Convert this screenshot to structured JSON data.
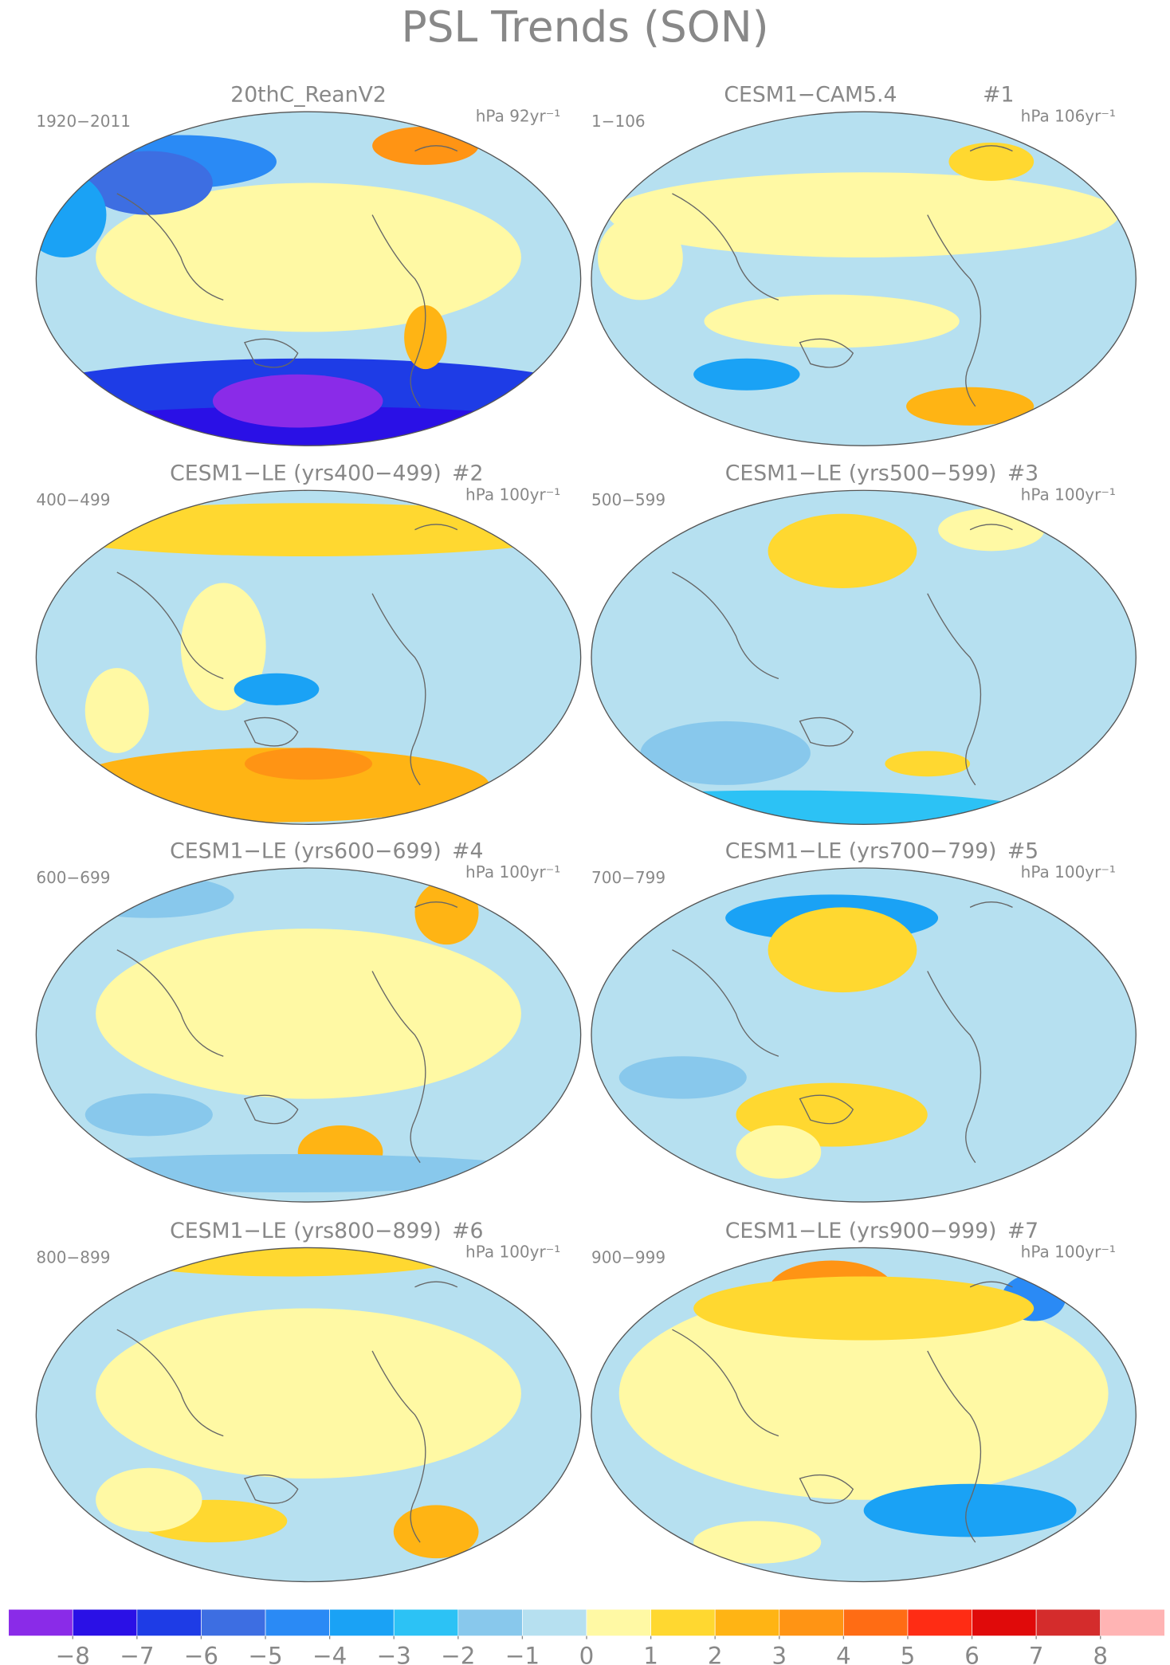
{
  "title": "PSL Trends (SON)",
  "panels": [
    {
      "title": "20thC_ReanV2",
      "period": "1920−2011",
      "units": "hPa 92yr⁻¹"
    },
    {
      "title": "CESM1−CAM5.4",
      "number": "#1",
      "period": "1−106",
      "units": "hPa 106yr⁻¹"
    },
    {
      "title": "CESM1−LE (yrs400−499)",
      "number": "#2",
      "period": "400−499",
      "units": "hPa 100yr⁻¹"
    },
    {
      "title": "CESM1−LE (yrs500−599)",
      "number": "#3",
      "period": "500−599",
      "units": "hPa 100yr⁻¹"
    },
    {
      "title": "CESM1−LE (yrs600−699)",
      "number": "#4",
      "period": "600−699",
      "units": "hPa 100yr⁻¹"
    },
    {
      "title": "CESM1−LE (yrs700−799)",
      "number": "#5",
      "period": "700−799",
      "units": "hPa 100yr⁻¹"
    },
    {
      "title": "CESM1−LE (yrs800−899)",
      "number": "#6",
      "period": "800−899",
      "units": "hPa 100yr⁻¹"
    },
    {
      "title": "CESM1−LE (yrs900−999)",
      "number": "#7",
      "period": "900−999",
      "units": "hPa 100yr⁻¹"
    }
  ],
  "colorbar": {
    "colors": [
      "#8a2be8",
      "#2a10e6",
      "#1e3ce6",
      "#3d6ee2",
      "#2a8af5",
      "#1aa2f5",
      "#2cc2f5",
      "#88c8ec",
      "#b6e0f0",
      "#fff9a4",
      "#ffd830",
      "#ffb414",
      "#ff9414",
      "#ff6c14",
      "#ff2c14",
      "#e00a0a",
      "#d42c2c",
      "#ffb4b4"
    ],
    "ticks": [
      {
        "value": -8,
        "label": "−8"
      },
      {
        "value": -7,
        "label": "−7"
      },
      {
        "value": -6,
        "label": "−6"
      },
      {
        "value": -5,
        "label": "−5"
      },
      {
        "value": -4,
        "label": "−4"
      },
      {
        "value": -3,
        "label": "−3"
      },
      {
        "value": -2,
        "label": "−2"
      },
      {
        "value": -1,
        "label": "−1"
      },
      0,
      1,
      2,
      3,
      4,
      5,
      6,
      7,
      8
    ]
  }
}
